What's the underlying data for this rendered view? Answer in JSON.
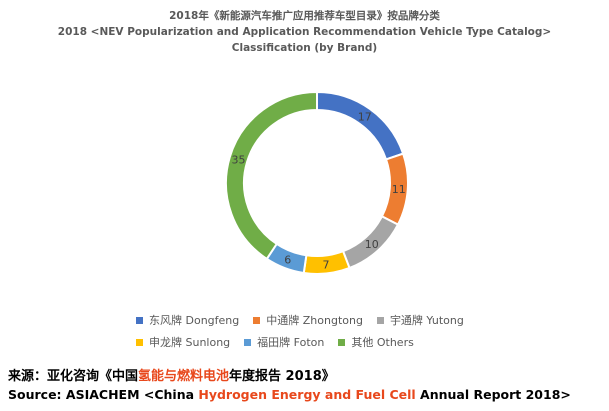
{
  "chart_data": {
    "type": "pie",
    "donut": true,
    "title": "2018年《新能源汽车推广应用推荐车型目录》按品牌分类",
    "subtitle_line1": "2018 <NEV Popularization and Application Recommendation Vehicle Type Catalog>",
    "subtitle_line2": "Classification (by Brand)",
    "categories": [
      "东风牌 Dongfeng",
      "中通牌 Zhongtong",
      "宇通牌 Yutong",
      "申龙牌 Sunlong",
      "福田牌 Foton",
      "其他 Others"
    ],
    "values": [
      17,
      11,
      10,
      7,
      6,
      35
    ],
    "colors": [
      "#4472c4",
      "#ed7d31",
      "#a5a5a5",
      "#ffc000",
      "#5b9bd5",
      "#70ad47"
    ],
    "legend_position": "bottom"
  },
  "source": {
    "cn_prefix": "来源：亚化咨询《中国",
    "cn_highlight": "氢能与燃料电池",
    "cn_suffix": "年度报告 2018》",
    "en_prefix": "Source: ASIACHEM <China ",
    "en_highlight": "Hydrogen Energy and Fuel Cell",
    "en_suffix": " Annual Report 2018>"
  }
}
